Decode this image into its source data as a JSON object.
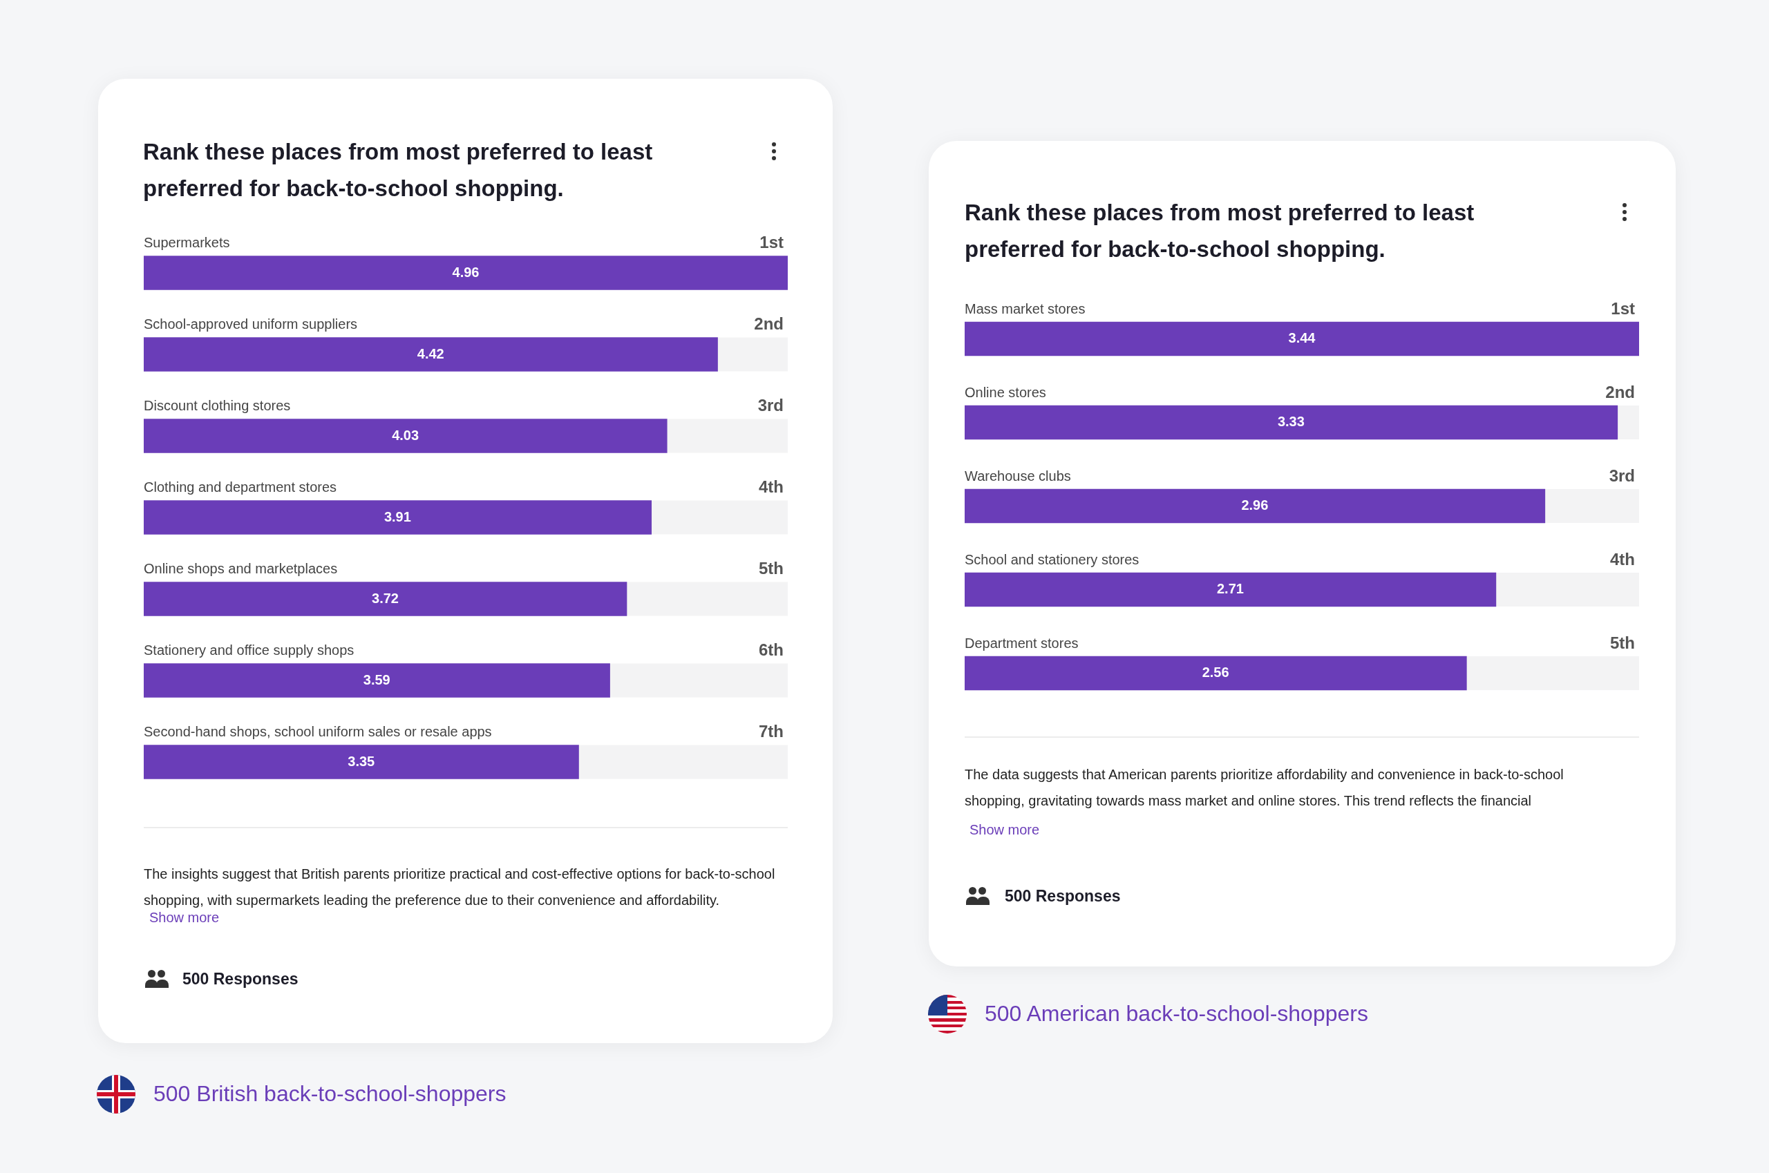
{
  "chart_data": [
    {
      "type": "bar",
      "orientation": "horizontal",
      "title": "Rank these places from most preferred to least preferred for back-to-school shopping.",
      "color": "#6a3db8",
      "data_labels": true,
      "categories": [
        "Supermarkets",
        "School-approved uniform suppliers",
        "Discount clothing stores",
        "Clothing and department stores",
        "Online shops and marketplaces",
        "Stationery and office supply shops",
        "Second-hand shops, school uniform sales or resale apps"
      ],
      "values": [
        4.96,
        4.42,
        4.03,
        3.91,
        3.72,
        3.59,
        3.35
      ],
      "annotations": [
        "1st",
        "2nd",
        "3rd",
        "4th",
        "5th",
        "6th",
        "7th",
        "The insights suggest that British parents prioritize practical and cost-effective options for back-to-school shopping, with supermarkets leading the preference due to their convenience and affordability.",
        "Show more",
        "500 Responses",
        "500 British back-to-school-shoppers"
      ]
    },
    {
      "type": "bar",
      "orientation": "horizontal",
      "title": "Rank these places from most preferred to least preferred for back-to-school shopping.",
      "color": "#6a3db8",
      "data_labels": true,
      "categories": [
        "Mass market stores",
        "Online stores",
        "Warehouse clubs",
        "School and stationery stores",
        "Department stores"
      ],
      "values": [
        3.44,
        3.33,
        2.96,
        2.71,
        2.56
      ],
      "annotations": [
        "1st",
        "2nd",
        "3rd",
        "4th",
        "5th",
        "The data suggests that American parents prioritize affordability and convenience in back-to-school shopping, gravitating towards mass market and online stores. This trend reflects the financial",
        "Show more",
        "500 Responses",
        "500 American back-to-school-shoppers"
      ]
    }
  ]
}
